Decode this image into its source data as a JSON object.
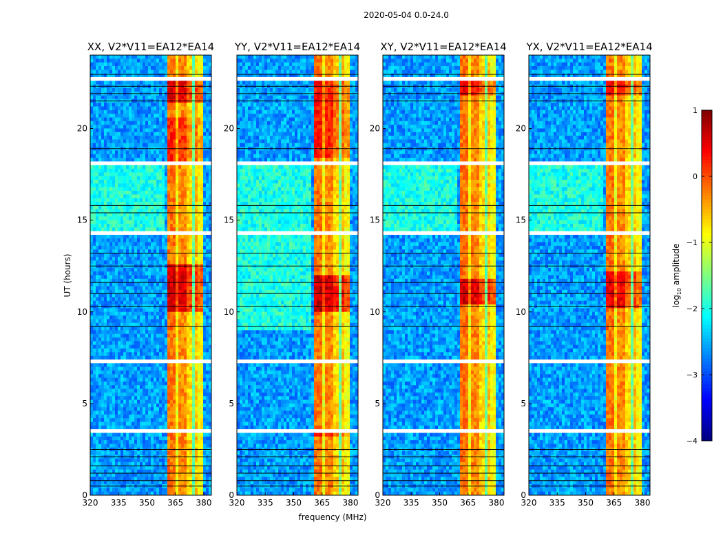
{
  "figure_title": "2020-05-04 0.0-24.0",
  "chart_data": {
    "type": "heatmap",
    "xlabel": "frequency (MHz)",
    "ylabel": "UT (hours)",
    "xlim": [
      320,
      384
    ],
    "ylim": [
      0,
      24
    ],
    "xticks": [
      320,
      335,
      350,
      365,
      380
    ],
    "yticks": [
      0,
      5,
      10,
      15,
      20
    ],
    "colorbar": {
      "label_main": "log",
      "label_sub": "10",
      "label_rest": " amplitude",
      "range": [
        -4,
        1
      ],
      "ticks": [
        1,
        0,
        -1,
        -2,
        -3,
        -4
      ],
      "tick_labels": [
        "1",
        "0",
        "−1",
        "−2",
        "−3",
        "−4"
      ],
      "colormap": "jet"
    },
    "model": {
      "background_log10_amp": -2.6,
      "rfi_bands_mhz": [
        [
          361,
          364.5,
          -0.2
        ],
        [
          364.5,
          366,
          -0.9
        ],
        [
          366.5,
          370.5,
          -0.3
        ],
        [
          371,
          373.5,
          -0.7
        ],
        [
          374,
          375,
          -1.6
        ],
        [
          375.5,
          376.5,
          -0.6
        ],
        [
          377,
          380,
          -0.9
        ]
      ],
      "flagged_white_hours": [
        [
          14.15,
          14.45
        ],
        [
          17.95,
          18.1
        ],
        [
          22.7,
          22.85
        ],
        [
          7.3,
          7.4
        ],
        [
          6.35,
          6.45
        ],
        [
          3.5,
          3.6
        ],
        [
          8.95,
          9.05
        ],
        [
          19.2,
          19.25
        ],
        [
          16.0,
          16.08
        ],
        [
          15.6,
          15.65
        ]
      ],
      "black_line_hours": [
        22.95,
        22.3,
        21.9,
        21.5,
        18.9,
        15.8,
        15.4,
        13.2,
        12.5,
        11.6,
        11.0,
        10.3,
        9.2,
        2.5,
        2.1,
        1.6,
        1.2,
        0.8,
        0.5
      ]
    },
    "panels": [
      {
        "title": "XX, V2*V11=EA12*EA14",
        "greenish_hours": [
          14.5,
          18.0
        ],
        "strong_hours": [
          [
            10.0,
            12.5,
            0.8
          ],
          [
            18.2,
            20.5,
            0.4
          ],
          [
            21.5,
            22.5,
            0.7
          ]
        ]
      },
      {
        "title": "YY, V2*V11=EA12*EA14",
        "greenish_hours": [
          9.0,
          18.0
        ],
        "strong_hours": [
          [
            10.0,
            12.0,
            0.9
          ],
          [
            18.5,
            22.5,
            0.5
          ],
          [
            3.3,
            3.6,
            0.5
          ]
        ]
      },
      {
        "title": "XY, V2*V11=EA12*EA14",
        "greenish_hours": [
          14.5,
          18.0
        ],
        "strong_hours": [
          [
            10.5,
            11.8,
            0.8
          ],
          [
            21.8,
            22.5,
            0.6
          ]
        ]
      },
      {
        "title": "YX, V2*V11=EA12*EA14",
        "greenish_hours": [
          14.5,
          18.0
        ],
        "strong_hours": [
          [
            10.3,
            12.2,
            0.7
          ],
          [
            21.8,
            22.5,
            0.6
          ]
        ]
      }
    ]
  }
}
